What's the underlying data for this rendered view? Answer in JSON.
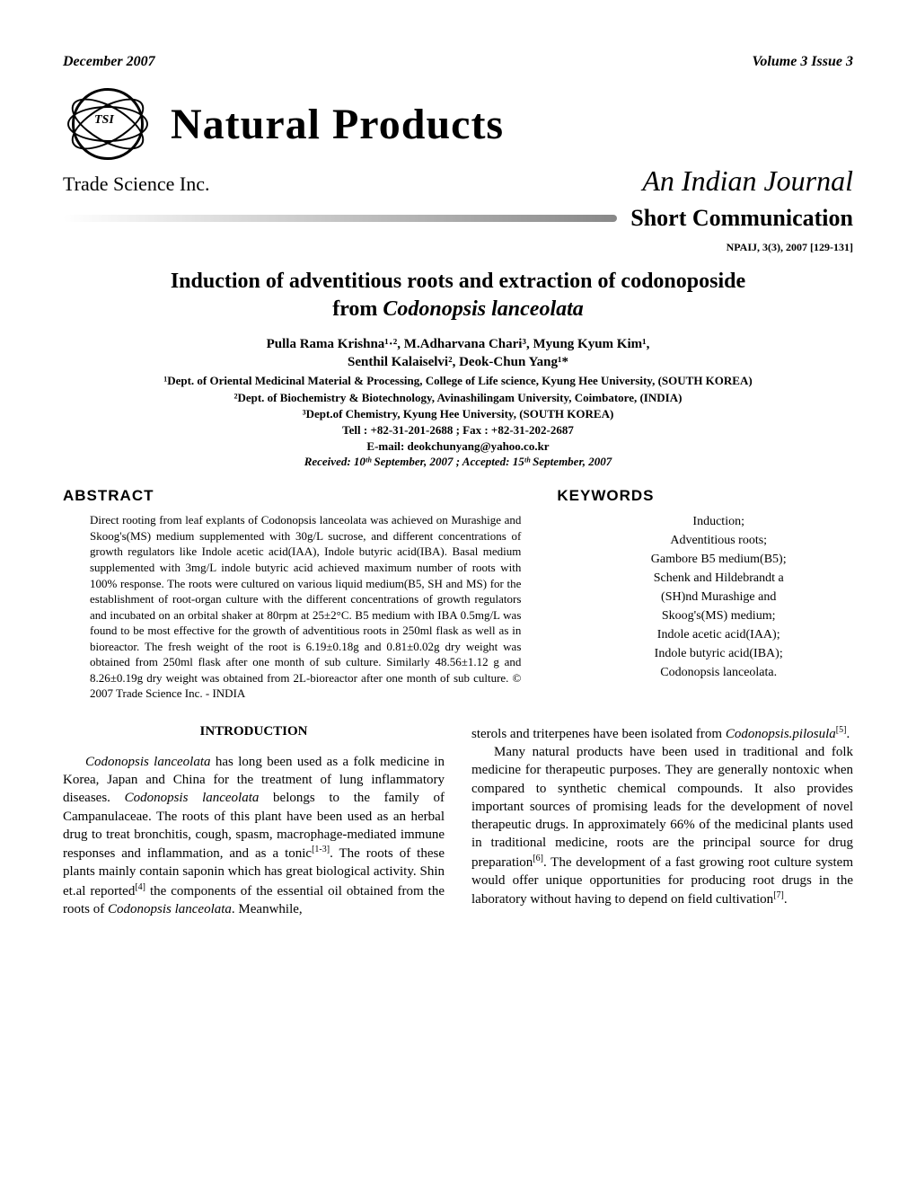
{
  "header": {
    "date": "December 2007",
    "volume": "Volume 3 Issue 3",
    "journal_title": "Natural Products",
    "trade_science": "Trade Science Inc.",
    "indian_journal": "An Indian Journal",
    "short_comm": "Short Communication",
    "citation": "NPAIJ, 3(3), 2007 [129-131]",
    "logo_tsi": "TSI"
  },
  "article": {
    "title_line1": "Induction of adventitious roots and extraction of codonoposide",
    "title_line2": "from Codonopsis lanceolata",
    "authors_line1": "Pulla Rama Krishna¹·², M.Adharvana Chari³, Myung Kyum Kim¹,",
    "authors_line2": "Senthil Kalaiselvi², Deok-Chun Yang¹*",
    "aff1": "¹Dept. of Oriental Medicinal Material & Processing, College of Life science, Kyung Hee University, (SOUTH KOREA)",
    "aff2": "²Dept. of Biochemistry & Biotechnology, Avinashilingam University, Coimbatore, (INDIA)",
    "aff3": "³Dept.of Chemistry, Kyung Hee University, (SOUTH KOREA)",
    "tel": "Tell : +82-31-201-2688 ; Fax : +82-31-202-2687",
    "email": "E-mail: deokchunyang@yahoo.co.kr",
    "received": "Received: 10ᵗʰ September, 2007 ; Accepted: 15ᵗʰ September, 2007"
  },
  "abstract": {
    "heading": "ABSTRACT",
    "text": "Direct rooting from leaf explants of Codonopsis lanceolata was achieved on Murashige and Skoog's(MS) medium supplemented with 30g/L sucrose, and different concentrations of growth regulators like Indole acetic acid(IAA), Indole butyric acid(IBA). Basal medium supplemented with 3mg/L indole butyric acid achieved maximum number of roots with 100% response. The roots were cultured on various liquid medium(B5, SH and MS) for the establishment of root-organ culture with the different concentrations of growth regulators and incubated on an orbital shaker at 80rpm at 25±2°C. B5 medium with IBA 0.5mg/L was found to be most effective for the growth of adventitious roots in 250ml flask as well as in bioreactor. The fresh weight of the root is 6.19±0.18g and 0.81±0.02g dry weight was obtained from 250ml flask after one month of sub culture. Similarly 48.56±1.12 g and 8.26±0.19g dry weight was obtained from 2L-bioreactor after one month of sub culture.         © 2007 Trade Science Inc. - INDIA"
  },
  "keywords": {
    "heading": "KEYWORDS",
    "items": "Induction;\nAdventitious roots;\nGambore B5 medium(B5);\nSchenk and Hildebrandt a\n(SH)nd Murashige and\nSkoog's(MS) medium;\nIndole acetic acid(IAA);\nIndole butyric acid(IBA);\nCodonopsis lanceolata."
  },
  "body": {
    "intro_heading": "INTRODUCTION",
    "para1": "Codonopsis lanceolata has long been used as a folk medicine in Korea, Japan and China for the treatment of lung inflammatory diseases. Codonopsis lanceolata belongs to the family of Campanulaceae. The roots of this plant have been used as an herbal drug to treat bronchitis, cough, spasm, macrophage-mediated immune responses and inflammation, and as a tonic[1-3]. The roots of these plants mainly contain saponin which has great biological activity. Shin et.al reported[4] the components of the essential oil obtained from the roots of Codonopsis lanceolata. Meanwhile,",
    "para2": "sterols and triterpenes have been isolated from Codonopsis.pilosula[5].",
    "para3": "Many natural products have been used in traditional and folk medicine for therapeutic purposes. They are generally nontoxic when compared to synthetic chemical compounds. It also provides important sources of promising leads for the development of novel therapeutic drugs. In approximately 66% of the medicinal plants used in traditional medicine, roots are the principal source for drug preparation[6]. The development of a fast growing root culture system would offer unique opportunities for producing root drugs in the laboratory without having to depend on field cultivation[7]."
  }
}
